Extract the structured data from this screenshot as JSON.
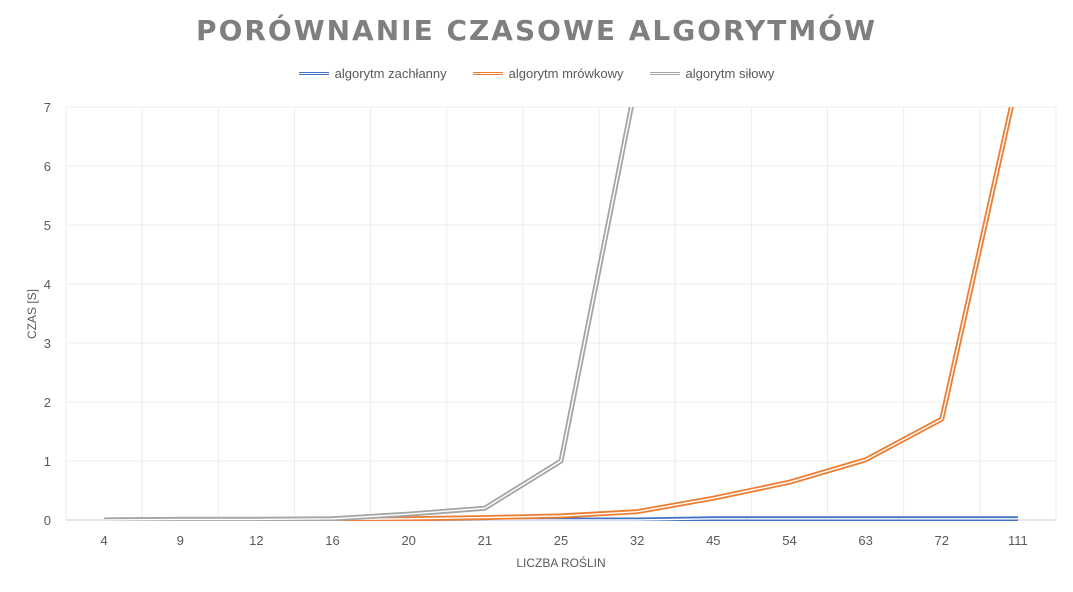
{
  "chart_data": {
    "type": "line",
    "title": "PORÓWNANIE CZASOWE ALGORYTMÓW",
    "xlabel": "LICZBA ROŚLIN",
    "ylabel": "CZAS [S]",
    "categories": [
      "4",
      "9",
      "12",
      "16",
      "20",
      "21",
      "25",
      "32",
      "45",
      "54",
      "63",
      "72",
      "111"
    ],
    "ylim": [
      0,
      7
    ],
    "yticks": [
      "0",
      "1",
      "2",
      "3",
      "4",
      "5",
      "6",
      "7"
    ],
    "grid": true,
    "legend_position": "top",
    "series": [
      {
        "name": "algorytm zachłanny",
        "color": "#4472c4",
        "values": [
          0,
          0,
          0,
          0,
          0,
          0,
          0,
          0,
          0.02,
          0.02,
          0.02,
          0.02,
          0.02
        ]
      },
      {
        "name": "algorytm mrówkowy",
        "color": "#ed7d31",
        "values": [
          0,
          0.01,
          0.01,
          0.01,
          0.02,
          0.04,
          0.07,
          0.14,
          0.37,
          0.64,
          1.02,
          1.71,
          7.5
        ]
      },
      {
        "name": "algorytm siłowy",
        "color": "#a5a5a5",
        "values": [
          0,
          0.01,
          0.01,
          0.02,
          0.1,
          0.2,
          1.0,
          7.5,
          null,
          null,
          null,
          null,
          null
        ]
      }
    ]
  }
}
